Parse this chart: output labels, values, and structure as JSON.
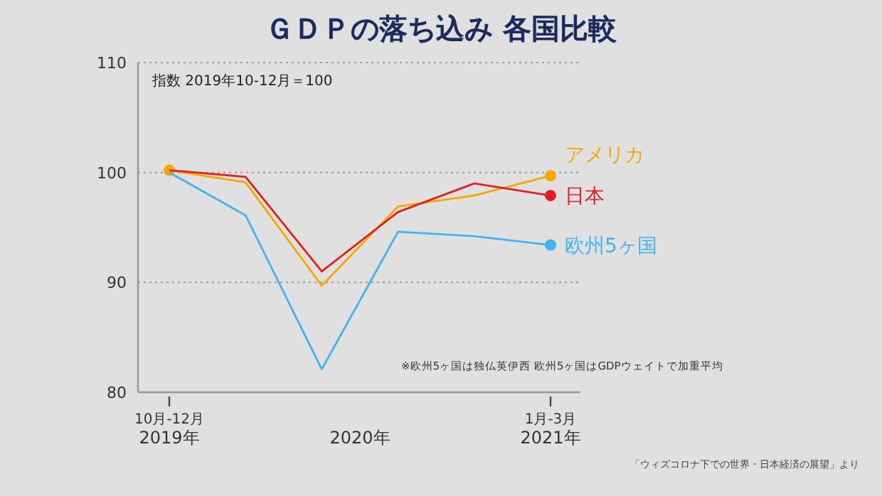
{
  "chart_data": {
    "type": "line",
    "title": "ＧＤＰの落ち込み 各国比較",
    "ylabel": "指数 2019年10-12月＝100",
    "xlabel": "2020年",
    "categories": [
      "10月-12月\n2019年",
      null,
      null,
      null,
      null,
      "1月-3月\n2021年"
    ],
    "series": [
      {
        "name": "アメリカ",
        "color": "#f5a800",
        "values": [
          100.2,
          99.1,
          89.7,
          96.9,
          97.9,
          99.7
        ]
      },
      {
        "name": "日本",
        "color": "#e02020",
        "values": [
          100.2,
          99.6,
          91.0,
          96.4,
          99.0,
          97.9
        ]
      },
      {
        "name": "欧州5ヶ国",
        "color": "#40b4ee",
        "values": [
          100.0,
          96.1,
          82.1,
          94.6,
          94.2,
          93.4
        ]
      }
    ],
    "ylim": [
      80,
      110
    ],
    "yticks": [
      80,
      90,
      100,
      110
    ],
    "grid": "y",
    "line_style": "solid",
    "annotations": [
      "※欧州5ヶ国は独仏英伊西 欧州5ヶ国はGDPウェイトで加重平均",
      "「ウィズコロナ下での世界・日本経済の展望」より"
    ]
  }
}
